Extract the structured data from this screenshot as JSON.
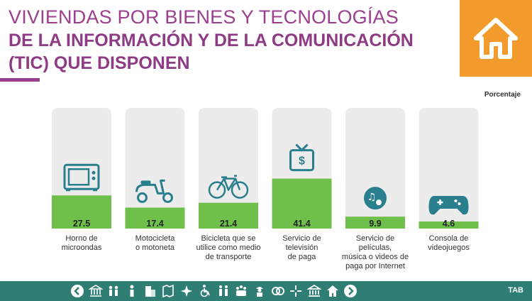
{
  "header": {
    "title_line1": "VIVIENDAS POR BIENES Y TECNOLOGÍAS",
    "title_line2": "DE LA INFORMACIÓN Y DE LA COMUNICACIÓN",
    "title_line3": "(TIC) QUE DISPONEN",
    "badge_icon": "home-icon"
  },
  "colors": {
    "accent": "#9b3f8f",
    "bar": "#6fbf4b",
    "badge": "#f29b2c",
    "footer": "#2e7e74",
    "icon": "#2a7f8e"
  },
  "chart_data": {
    "type": "bar",
    "title": "VIVIENDAS POR BIENES Y TECNOLOGÍAS DE LA INFORMACIÓN Y DE LA COMUNICACIÓN (TIC) QUE DISPONEN",
    "ylabel": "Porcentaje",
    "xlabel": "",
    "ylim": [
      0,
      100
    ],
    "categories": [
      "Horno de microondas",
      "Motocicleta o motoneta",
      "Bicicleta que se utilice como medio de transporte",
      "Servicio de televisión de paga",
      "Servicio de películas, música o videos de paga por Internet",
      "Consola de videojuegos"
    ],
    "category_lines": [
      [
        "Horno de",
        "microondas"
      ],
      [
        "Motocicleta",
        "o motoneta"
      ],
      [
        "Bicicleta que se",
        "utilice como medio",
        "de transporte"
      ],
      [
        "Servicio de",
        "televisión",
        "de paga"
      ],
      [
        "Servicio de",
        "películas,",
        "música o videos de",
        "paga por Internet"
      ],
      [
        "Consola de",
        "videojuegos"
      ]
    ],
    "values": [
      27.5,
      17.4,
      21.4,
      41.4,
      9.9,
      4.6
    ],
    "value_labels": [
      "27.5",
      "17.4",
      "21.4",
      "41.4",
      "9.9",
      "4.6"
    ],
    "icons": [
      "microwave-icon",
      "scooter-icon",
      "bicycle-icon",
      "tv-icon",
      "music-icon",
      "gamepad-icon"
    ]
  },
  "footer": {
    "icons": [
      "back-arrow-icon",
      "museum-icon",
      "people-icon",
      "person-icon",
      "building-icon",
      "map-icon",
      "compass-icon",
      "wheelchair-icon",
      "family-icon",
      "group-icon",
      "worker-icon",
      "rings-icon",
      "spark-icon",
      "bank-icon",
      "home-icon",
      "forward-arrow-icon"
    ],
    "tab_label": "TAB"
  }
}
